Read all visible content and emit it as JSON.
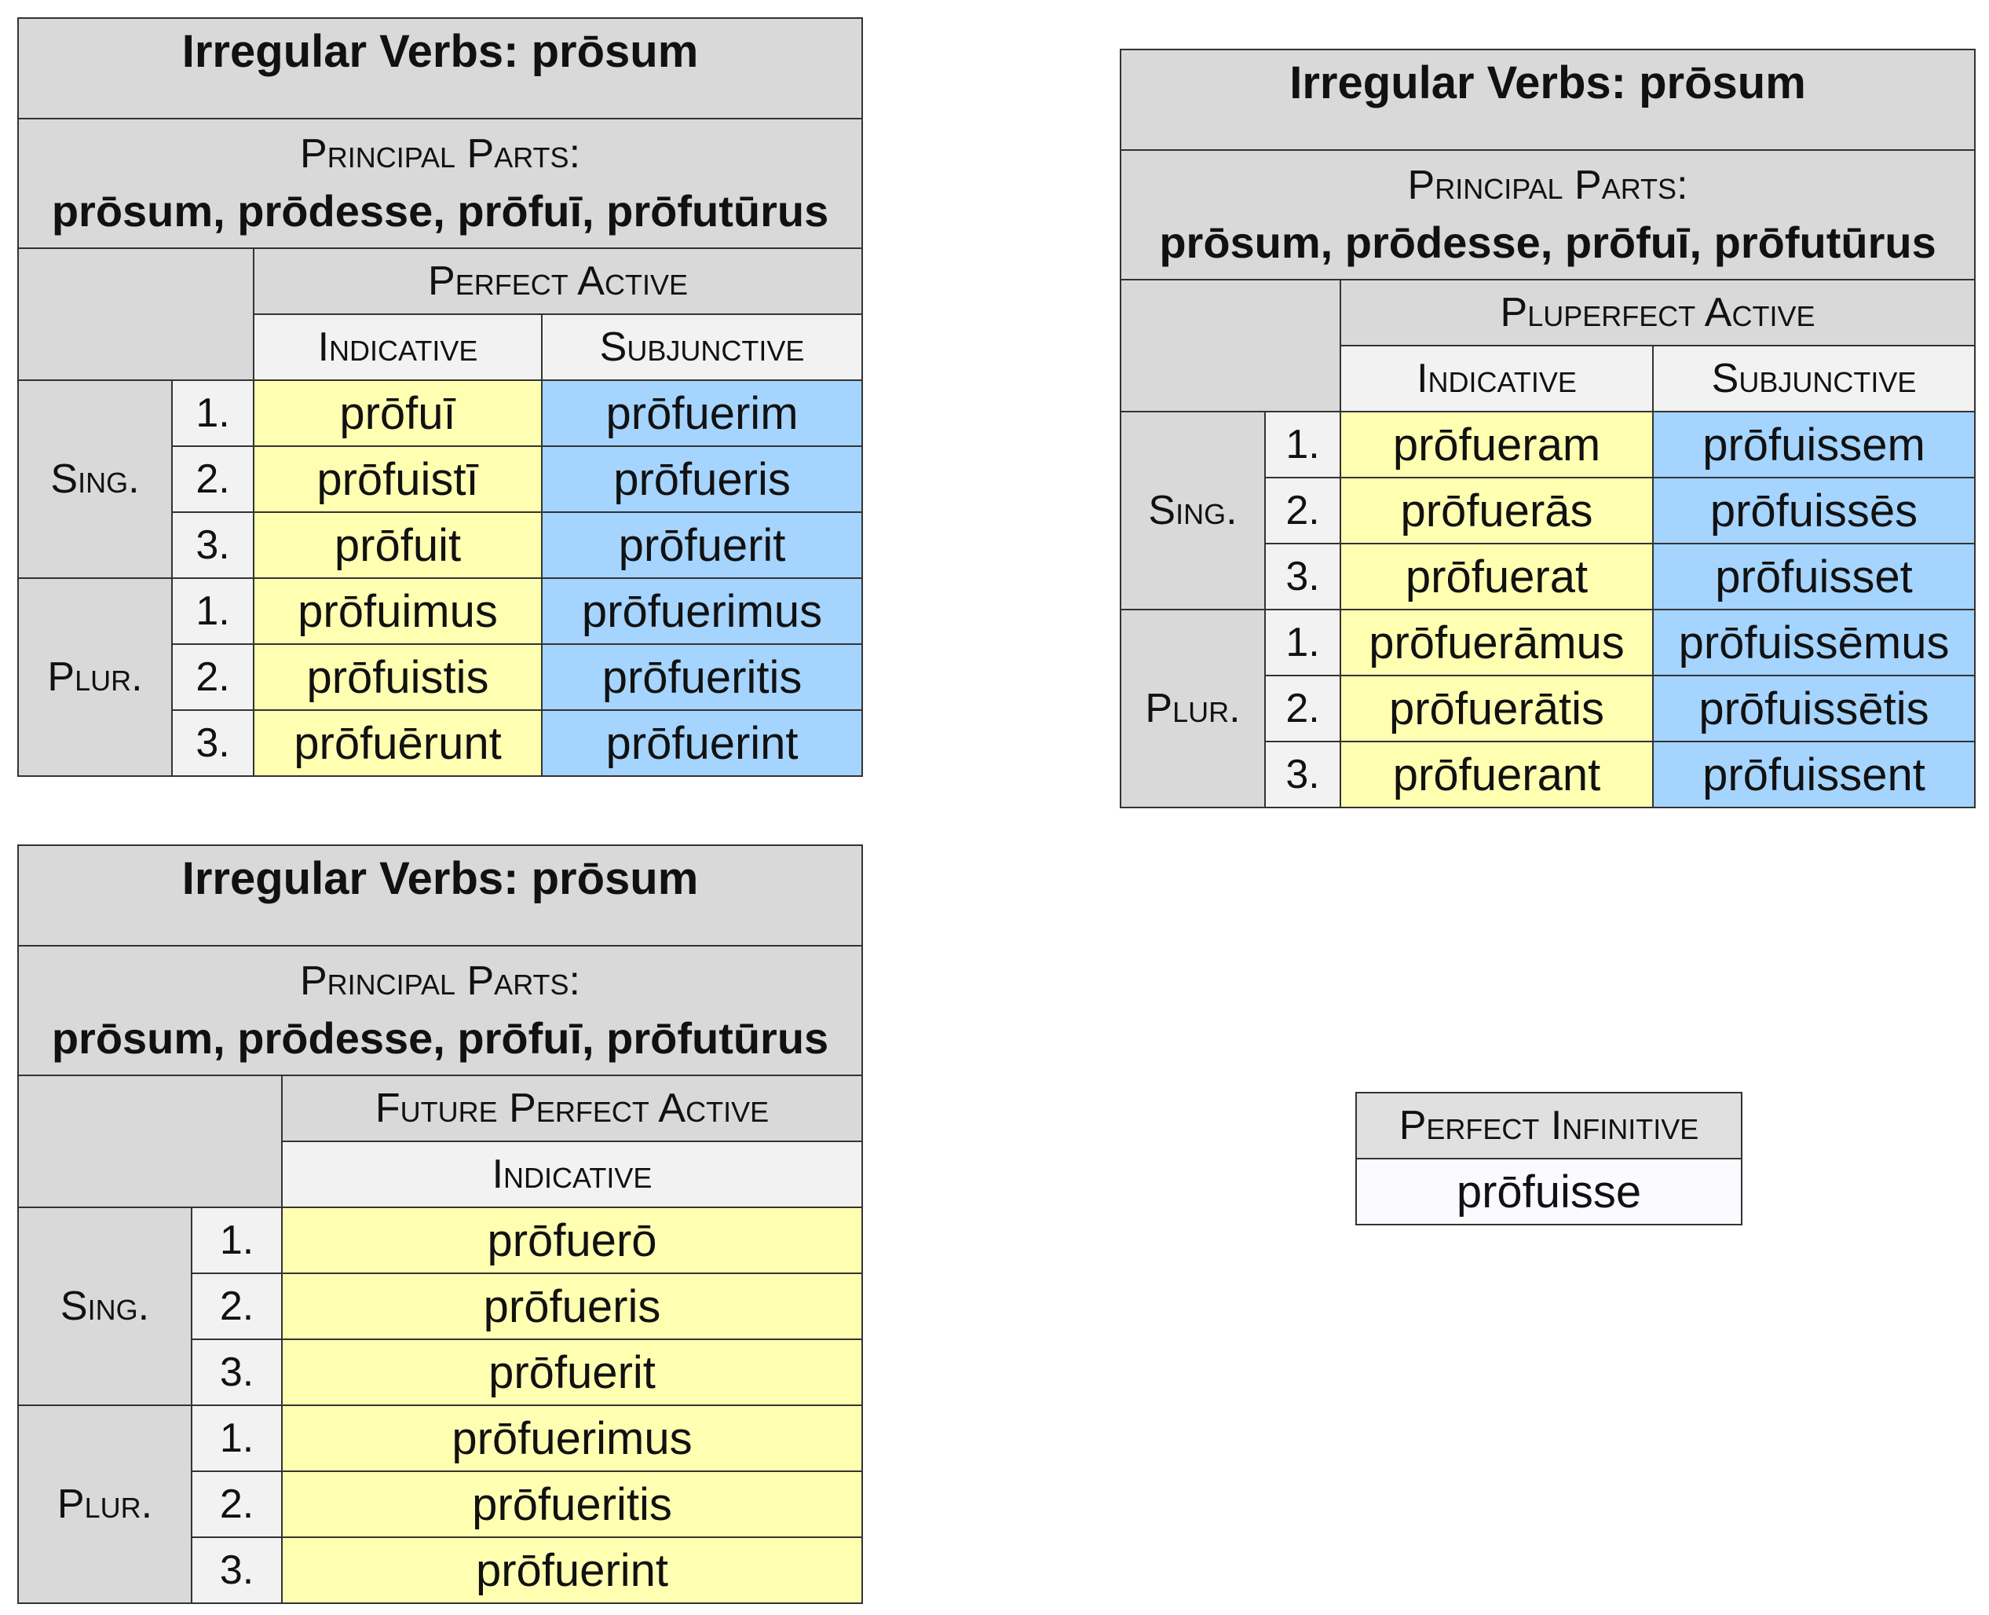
{
  "perfect_table": {
    "title": "Irregular Verbs: prōsum",
    "principal_parts_label": "Principal Parts:",
    "principal_parts": "prōsum, prōdesse, prōfuī, prōfutūrus",
    "tense": "Perfect Active",
    "moods": [
      "Indicative",
      "Subjunctive"
    ],
    "sing_label": "Sing.",
    "plur_label": "Plur.",
    "rows": [
      {
        "num": "1.",
        "ind": "prōfuī",
        "subj": "prōfuerim"
      },
      {
        "num": "2.",
        "ind": "prōfuistī",
        "subj": "prōfueris"
      },
      {
        "num": "3.",
        "ind": "prōfuit",
        "subj": "prōfuerit"
      },
      {
        "num": "1.",
        "ind": "prōfuimus",
        "subj": "prōfuerimus"
      },
      {
        "num": "2.",
        "ind": "prōfuistis",
        "subj": "prōfueritis"
      },
      {
        "num": "3.",
        "ind": "prōfuērunt",
        "subj": "prōfuerint"
      }
    ]
  },
  "pluperfect_table": {
    "title": "Irregular Verbs: prōsum",
    "principal_parts_label": "Principal Parts:",
    "principal_parts": "prōsum, prōdesse, prōfuī, prōfutūrus",
    "tense": "Pluperfect Active",
    "moods": [
      "Indicative",
      "Subjunctive"
    ],
    "sing_label": "Sing.",
    "plur_label": "Plur.",
    "rows": [
      {
        "num": "1.",
        "ind": "prōfueram",
        "subj": "prōfuissem"
      },
      {
        "num": "2.",
        "ind": "prōfuerās",
        "subj": "prōfuissēs"
      },
      {
        "num": "3.",
        "ind": "prōfuerat",
        "subj": "prōfuisset"
      },
      {
        "num": "1.",
        "ind": "prōfuerāmus",
        "subj": "prōfuissēmus"
      },
      {
        "num": "2.",
        "ind": "prōfuerātis",
        "subj": "prōfuissētis"
      },
      {
        "num": "3.",
        "ind": "prōfuerant",
        "subj": "prōfuissent"
      }
    ]
  },
  "future_perfect_table": {
    "title": "Irregular Verbs: prōsum",
    "principal_parts_label": "Principal Parts:",
    "principal_parts": "prōsum, prōdesse, prōfuī, prōfutūrus",
    "tense": "Future Perfect Active",
    "moods": [
      "Indicative"
    ],
    "sing_label": "Sing.",
    "plur_label": "Plur.",
    "rows": [
      {
        "num": "1.",
        "ind": "prōfuerō"
      },
      {
        "num": "2.",
        "ind": "prōfueris"
      },
      {
        "num": "3.",
        "ind": "prōfuerit"
      },
      {
        "num": "1.",
        "ind": "prōfuerimus"
      },
      {
        "num": "2.",
        "ind": "prōfueritis"
      },
      {
        "num": "3.",
        "ind": "prōfuerint"
      }
    ]
  },
  "infinitive": {
    "label": "Perfect Infinitive",
    "value": "prōfuisse"
  }
}
